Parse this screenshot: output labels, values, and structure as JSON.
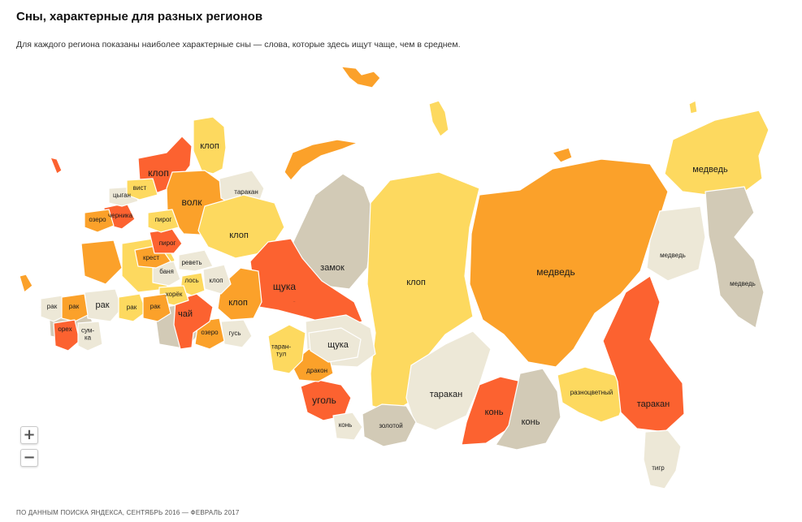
{
  "title": "Сны, характерные для разных регионов",
  "subtitle": "Для каждого региона показаны наиболее характерные сны — слова, которые здесь ищут чаще, чем в среднем.",
  "footer": "ПО ДАННЫМ ПОИСКА ЯНДЕКСА, СЕНТЯБРЬ 2016 — ФЕВРАЛЬ 2017",
  "zoom": {
    "in_label": "+",
    "out_label": "−"
  },
  "colors": {
    "light": "#fdd95f",
    "medium": "#fba12a",
    "strong": "#fc6230",
    "grey": "#d2cab6",
    "pale": "#ede8d7"
  },
  "regions": [
    {
      "label": "клоп",
      "color": "light"
    },
    {
      "label": "клоп",
      "color": "strong"
    },
    {
      "label": "волк",
      "color": "medium"
    },
    {
      "label": "таракан",
      "color": "pale"
    },
    {
      "label": "клоп",
      "color": "light"
    },
    {
      "label": "замок",
      "color": "grey"
    },
    {
      "label": "клоп",
      "color": "light"
    },
    {
      "label": "медведь",
      "color": "medium"
    },
    {
      "label": "медведь",
      "color": "light"
    },
    {
      "label": "медведь",
      "color": "pale"
    },
    {
      "label": "медведь",
      "color": "grey"
    },
    {
      "label": "щука",
      "color": "strong"
    },
    {
      "label": "клоп",
      "color": "medium"
    },
    {
      "label": "щука",
      "color": "pale"
    },
    {
      "label": "таракан",
      "color": "pale"
    },
    {
      "label": "конь",
      "color": "strong"
    },
    {
      "label": "конь",
      "color": "grey"
    },
    {
      "label": "разноцветный",
      "color": "light"
    },
    {
      "label": "таракан",
      "color": "strong"
    },
    {
      "label": "тигр",
      "color": "pale"
    },
    {
      "label": "уголь",
      "color": "strong"
    },
    {
      "label": "дракон",
      "color": "medium"
    },
    {
      "label": "золотой",
      "color": "grey"
    },
    {
      "label": "конь",
      "color": "pale"
    },
    {
      "label": "таран-\nтул",
      "color": "light"
    },
    {
      "label": "гусь",
      "color": "pale"
    },
    {
      "label": "озеро",
      "color": "medium"
    },
    {
      "label": "чай",
      "color": "strong"
    },
    {
      "label": "клоп",
      "color": "pale"
    },
    {
      "label": "лось",
      "color": "light"
    },
    {
      "label": "баня",
      "color": "pale"
    },
    {
      "label": "реветь",
      "color": "pale"
    },
    {
      "label": "хорёк",
      "color": "light"
    },
    {
      "label": "крест",
      "color": "medium"
    },
    {
      "label": "пирог",
      "color": "strong"
    },
    {
      "label": "пирог",
      "color": "light"
    },
    {
      "label": "черника",
      "color": "strong"
    },
    {
      "label": "цыган",
      "color": "pale"
    },
    {
      "label": "вист",
      "color": "light"
    },
    {
      "label": "озеро",
      "color": "medium"
    },
    {
      "label": "рак",
      "color": "pale"
    },
    {
      "label": "рак",
      "color": "light"
    },
    {
      "label": "рак",
      "color": "medium"
    },
    {
      "label": "рак",
      "color": "pale"
    },
    {
      "label": "рак",
      "color": "medium"
    },
    {
      "label": "орех",
      "color": "strong"
    },
    {
      "label": "сум-\nка",
      "color": "pale"
    },
    {
      "label": "щука",
      "color": "pale"
    }
  ]
}
